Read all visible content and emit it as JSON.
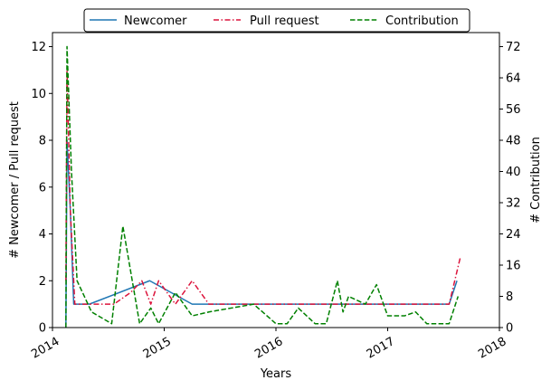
{
  "chart_data": {
    "type": "line",
    "xlabel": "Years",
    "ylabel_left": "# Newcomer / Pull request",
    "ylabel_right": "# Contribution",
    "x_ticks": [
      "2014",
      "2015",
      "2016",
      "2017",
      "2018"
    ],
    "x_range": [
      2014.0,
      2018.0
    ],
    "y_left_ticks": [
      "0",
      "2",
      "4",
      "6",
      "8",
      "10",
      "12"
    ],
    "y_left_range": [
      0,
      12.6
    ],
    "y_right_ticks": [
      "0",
      "8",
      "16",
      "24",
      "32",
      "40",
      "48",
      "56",
      "64",
      "72"
    ],
    "y_right_range": [
      0,
      75.6
    ],
    "grid": false,
    "legend_position": "top-center",
    "series": [
      {
        "name": "Newcomer",
        "axis": "left",
        "color": "#1f77b4",
        "style": "solid",
        "x": [
          2014.12,
          2014.13,
          2014.16,
          2014.19,
          2014.33,
          2014.87,
          2015.25,
          2015.5,
          2016.0,
          2016.5,
          2017.0,
          2017.55,
          2017.62
        ],
        "y": [
          0,
          8,
          5,
          1,
          1,
          2,
          1,
          1,
          1,
          1,
          1,
          1,
          2
        ]
      },
      {
        "name": "Pull request",
        "axis": "left",
        "color": "#dc143c",
        "style": "dashdot",
        "x": [
          2014.12,
          2014.13,
          2014.16,
          2014.2,
          2014.45,
          2014.55,
          2014.7,
          2014.8,
          2014.88,
          2014.95,
          2015.1,
          2015.25,
          2015.4,
          2015.6,
          2015.8,
          2016.0,
          2016.3,
          2016.5,
          2016.7,
          2016.8,
          2016.9,
          2017.0,
          2017.3,
          2017.55,
          2017.65
        ],
        "y": [
          2,
          11,
          5,
          1,
          1,
          1,
          1.5,
          2,
          1,
          2,
          1,
          2,
          1,
          1,
          1,
          1,
          1,
          1,
          1,
          1,
          1,
          1,
          1,
          1,
          3
        ]
      },
      {
        "name": "Contribution",
        "axis": "right",
        "color": "#008000",
        "style": "dashed",
        "x": [
          2014.12,
          2014.13,
          2014.17,
          2014.22,
          2014.35,
          2014.53,
          2014.63,
          2014.78,
          2014.88,
          2014.95,
          2015.1,
          2015.25,
          2015.4,
          2015.6,
          2015.8,
          2016.0,
          2016.1,
          2016.2,
          2016.35,
          2016.45,
          2016.55,
          2016.6,
          2016.65,
          2016.8,
          2016.9,
          2017.0,
          2017.15,
          2017.25,
          2017.35,
          2017.42,
          2017.55,
          2017.63
        ],
        "y": [
          0,
          72,
          40,
          12,
          4,
          1,
          26,
          1,
          5,
          1,
          9,
          3,
          4,
          5,
          6,
          1,
          1,
          5,
          1,
          1,
          12,
          4,
          8,
          6,
          11,
          3,
          3,
          4,
          1,
          1,
          1,
          8
        ]
      }
    ]
  }
}
